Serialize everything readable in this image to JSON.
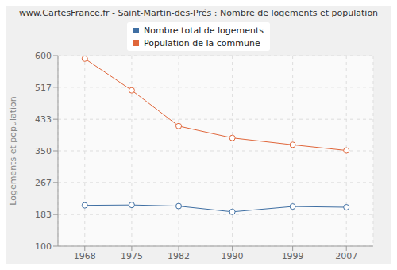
{
  "chart_data": {
    "type": "line",
    "title": "www.CartesFrance.fr - Saint-Martin-des-Prés : Nombre de logements et population",
    "y_label": "Logements et population",
    "x": [
      1968,
      1975,
      1982,
      1990,
      1999,
      2007
    ],
    "xlim": [
      1964,
      2011
    ],
    "xticks": [
      1968,
      1975,
      1982,
      1990,
      1999,
      2007
    ],
    "ylim": [
      100,
      600
    ],
    "yticks": [
      100,
      183,
      267,
      350,
      433,
      517,
      600
    ],
    "grid": true,
    "legend": "top",
    "series": [
      {
        "name": "Nombre total de logements",
        "color": "#3f6fa3",
        "marker": "circle",
        "values": [
          207,
          208,
          205,
          190,
          204,
          202
        ]
      },
      {
        "name": "Population de la commune",
        "color": "#e0663a",
        "marker": "circle",
        "values": [
          592,
          509,
          415,
          384,
          366,
          351
        ]
      }
    ]
  }
}
